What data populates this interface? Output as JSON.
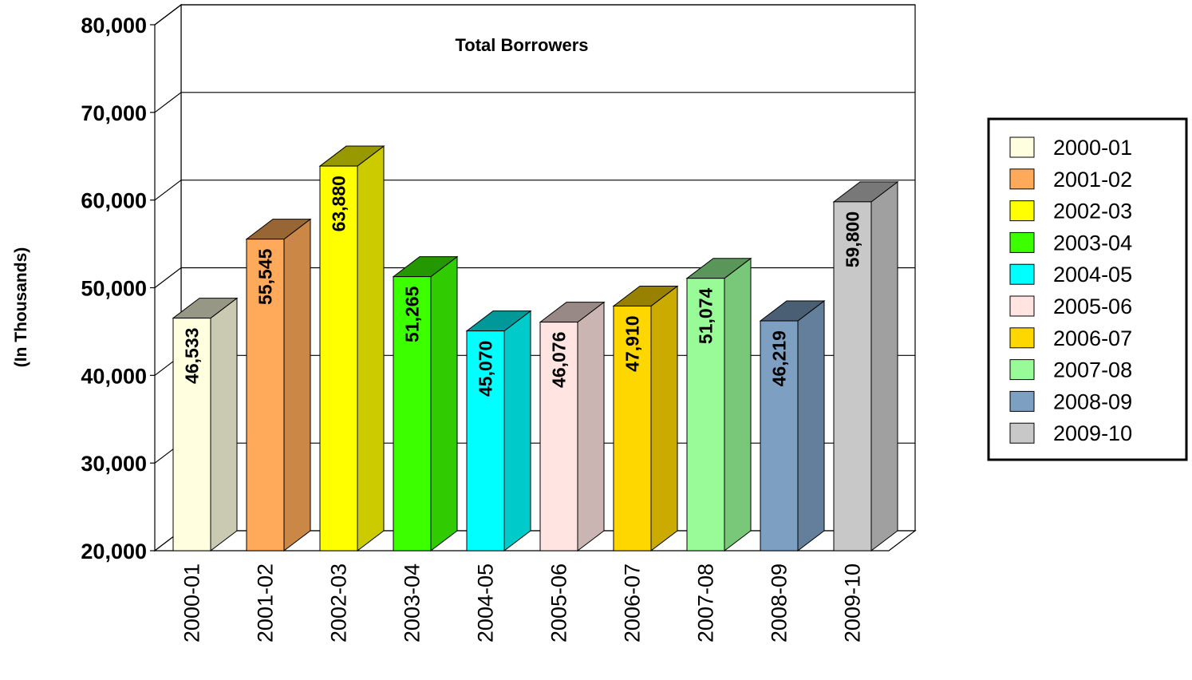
{
  "chart_data": {
    "type": "bar",
    "title": "Total Borrowers",
    "ylabel": "(In Thousands)",
    "xlabel": "",
    "categories": [
      "2000-01",
      "2001-02",
      "2002-03",
      "2003-04",
      "2004-05",
      "2005-06",
      "2006-07",
      "2007-08",
      "2008-09",
      "2009-10"
    ],
    "values": [
      46533,
      55545,
      63880,
      51265,
      45070,
      46076,
      47910,
      51074,
      46219,
      59800
    ],
    "value_labels": [
      "46,533",
      "55,545",
      "63,880",
      "51,265",
      "45,070",
      "46,076",
      "47,910",
      "51,074",
      "46,219",
      "59,800"
    ],
    "ylim": [
      20000,
      80000
    ],
    "yticks": [
      20000,
      30000,
      40000,
      50000,
      60000,
      70000,
      80000
    ],
    "ytick_labels": [
      "20,000",
      "30,000",
      "40,000",
      "50,000",
      "60,000",
      "70,000",
      "80,000"
    ],
    "grid": true,
    "legend_position": "right",
    "style": "3d-bar",
    "colors": {
      "front": [
        "#ffffe0",
        "#ffa95a",
        "#ffff00",
        "#3cff00",
        "#00ffff",
        "#ffe4e1",
        "#ffd700",
        "#98fb98",
        "#7c9fc2",
        "#c8c8c8"
      ],
      "side": [
        "#cacab2",
        "#cb8746",
        "#cbcb00",
        "#30cb00",
        "#00cbcb",
        "#cbb5b3",
        "#cbab00",
        "#79c879",
        "#637f9b",
        "#a0a0a0"
      ],
      "top": [
        "#979785",
        "#986534",
        "#989800",
        "#249800",
        "#009898",
        "#988886",
        "#988000",
        "#5a965a",
        "#4a5f74",
        "#787878"
      ]
    }
  }
}
